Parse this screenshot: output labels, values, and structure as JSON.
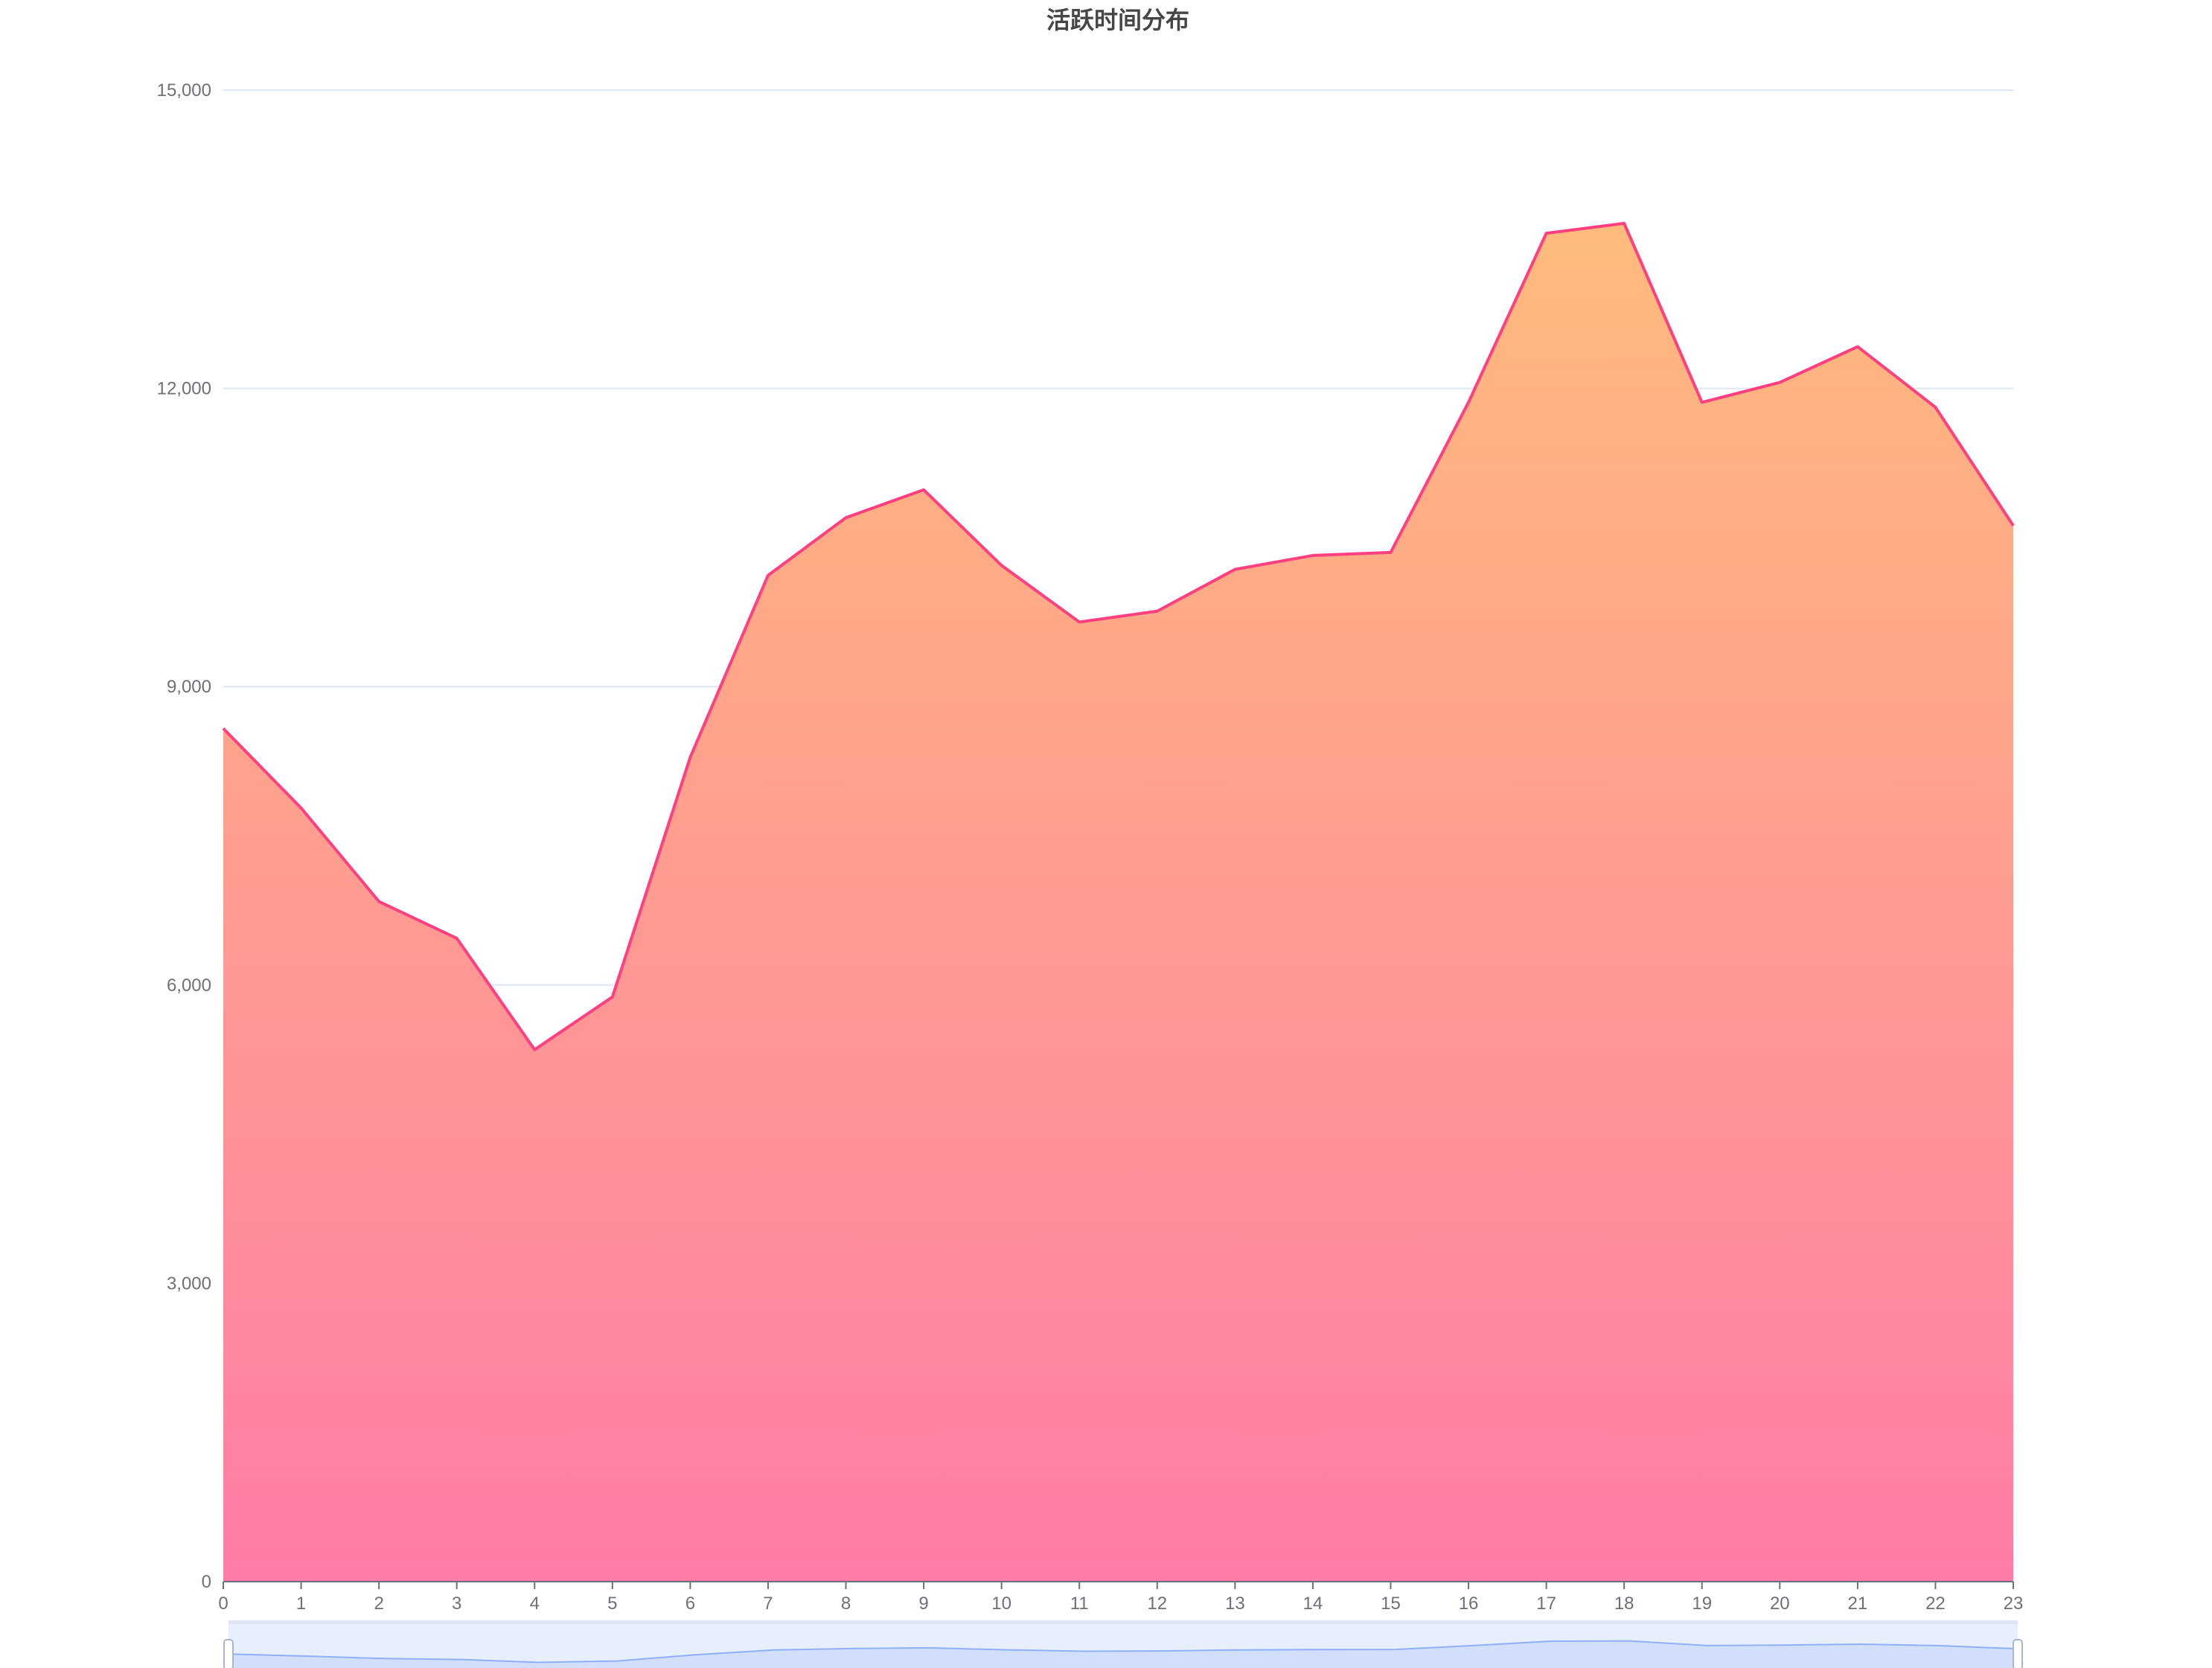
{
  "chart_data": {
    "type": "area",
    "title": "活跃时间分布",
    "xlabel": "",
    "ylabel": "",
    "categories": [
      "0",
      "1",
      "2",
      "3",
      "4",
      "5",
      "6",
      "7",
      "8",
      "9",
      "10",
      "11",
      "12",
      "13",
      "14",
      "15",
      "16",
      "17",
      "18",
      "19",
      "20",
      "21",
      "22",
      "23"
    ],
    "values": [
      8580,
      7780,
      6840,
      6470,
      5350,
      5880,
      8290,
      10120,
      10700,
      10980,
      10220,
      9650,
      9760,
      10180,
      10320,
      10350,
      11860,
      13560,
      13660,
      11860,
      12060,
      12420,
      11810,
      10620
    ],
    "ylim": [
      0,
      15000
    ],
    "yticks": [
      "0",
      "3,000",
      "6,000",
      "9,000",
      "12,000",
      "15,000"
    ],
    "grid": true,
    "line_color": "#ff3f7f",
    "fill_gradient": [
      "#ffbb7c",
      "#ff7ca6"
    ],
    "datazoom": {
      "range": [
        0,
        100
      ],
      "handle_color": "#a7b7cc",
      "fill_color": "#d2dffa",
      "line_color": "#8fb0f7"
    }
  }
}
